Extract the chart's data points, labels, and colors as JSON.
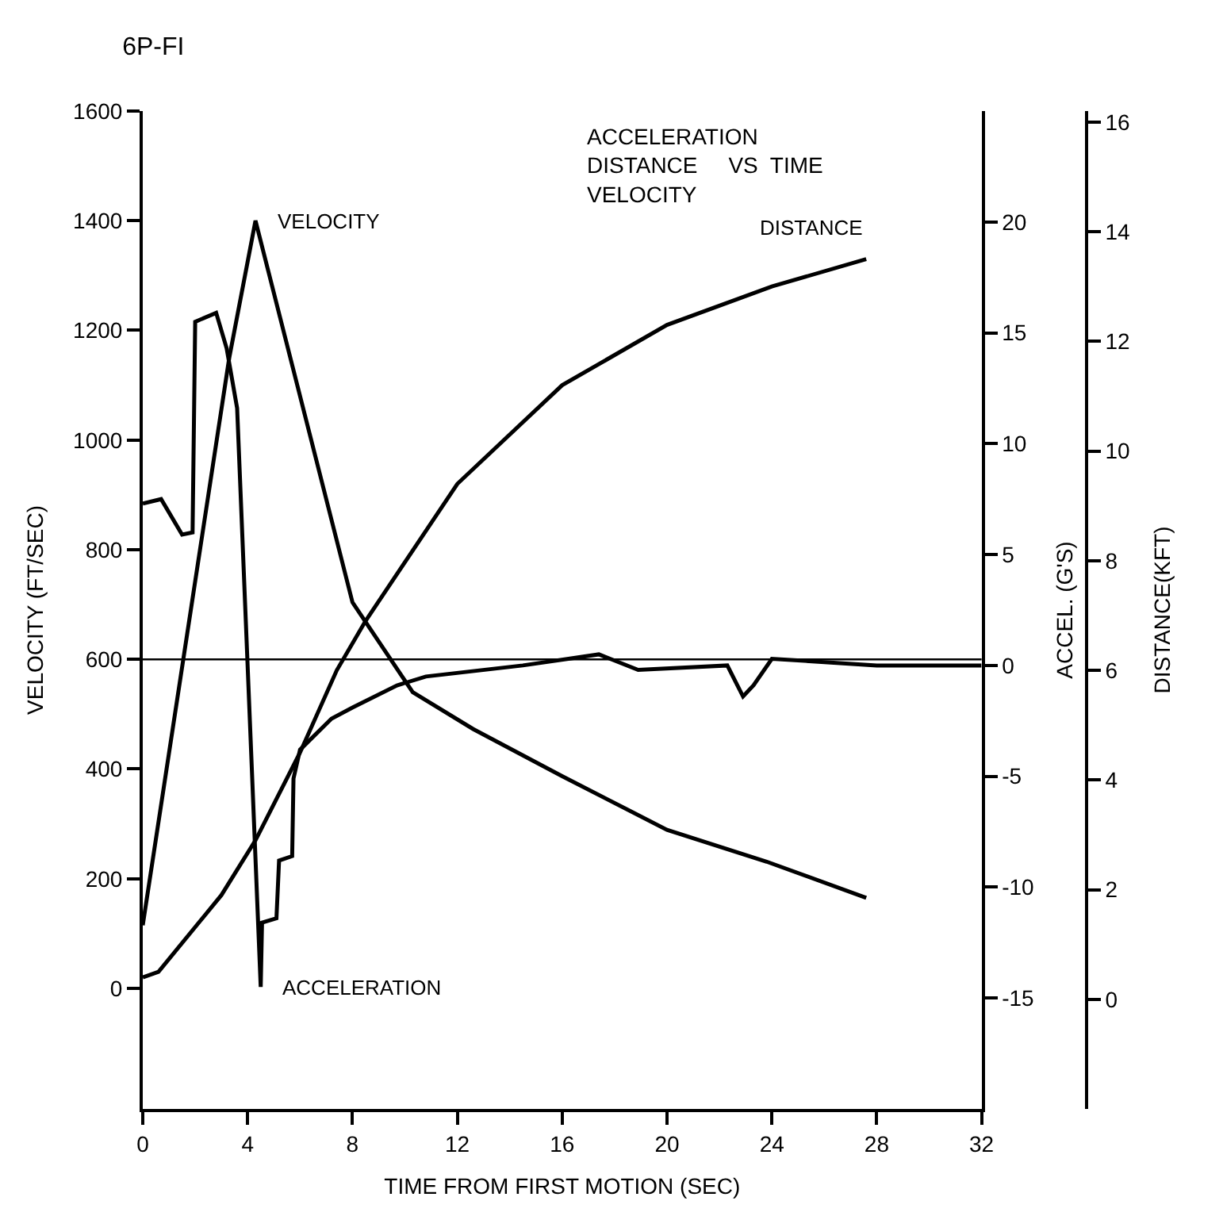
{
  "chart_data": {
    "type": "line",
    "title": "6P-FI",
    "subtitle": "ACCELERATION\nDISTANCE     VS  TIME\nVELOCITY",
    "xlabel": "TIME FROM FIRST MOTION (SEC)",
    "ylabel": "VELOCITY (FT/SEC)",
    "y2label": "ACCEL. (G'S)",
    "y3label": "DISTANCE(KFT)",
    "xlim": [
      0,
      32
    ],
    "xticks": [
      0,
      4,
      8,
      12,
      16,
      20,
      24,
      28,
      32
    ],
    "ylim": [
      -220,
      1600
    ],
    "yticks": [
      0,
      200,
      400,
      600,
      800,
      1000,
      1200,
      1400,
      1600
    ],
    "y2lim": [
      -20,
      25
    ],
    "y2ticks": [
      -15,
      -10,
      -5,
      0,
      5,
      10,
      15,
      20
    ],
    "y3lim": [
      -2,
      16.2
    ],
    "y3ticks": [
      0,
      2,
      4,
      6,
      8,
      10,
      12,
      14,
      16
    ],
    "legend": false,
    "ref_lines": [
      {
        "axis": "y",
        "value": 600,
        "color": "#000000"
      }
    ],
    "series": [
      {
        "name": "VELOCITY",
        "color": "#000000",
        "x": [
          0,
          3.3,
          4.3,
          8.0,
          10.3,
          12.6,
          16,
          20,
          23.8,
          27.6
        ],
        "values": [
          115,
          1150,
          1400,
          704,
          540,
          473,
          387,
          289,
          231,
          165
        ]
      },
      {
        "name": "DISTANCE",
        "color": "#000000",
        "axis": "y3",
        "x": [
          0,
          0.6,
          3.0,
          4.3,
          6.0,
          7.4,
          8.5,
          12,
          16,
          20,
          24,
          27.6
        ],
        "values": [
          0.4,
          0.5,
          1.9,
          2.9,
          4.5,
          6.0,
          6.9,
          9.4,
          11.2,
          12.3,
          13.0,
          13.5
        ]
      },
      {
        "name": "ACCELERATION",
        "color": "#000000",
        "axis": "y2",
        "x": [
          0,
          0.7,
          1.5,
          1.9,
          2.0,
          2.8,
          3.2,
          3.6,
          4.5,
          4.55,
          5.1,
          5.2,
          5.7,
          5.75,
          6.0,
          7.2,
          8.0,
          9.7,
          10.8,
          14.5,
          17.4,
          18.9,
          22.3,
          22.9,
          23.3,
          24,
          28,
          32
        ],
        "values": [
          7.3,
          7.5,
          5.9,
          6.0,
          15.5,
          15.9,
          14.3,
          11.6,
          -14.5,
          -11.6,
          -11.4,
          -8.8,
          -8.6,
          -5.1,
          -3.8,
          -2.4,
          -1.9,
          -0.9,
          -0.5,
          0,
          0.5,
          -0.2,
          0,
          -1.4,
          -0.9,
          0.3,
          0,
          0
        ]
      }
    ]
  }
}
